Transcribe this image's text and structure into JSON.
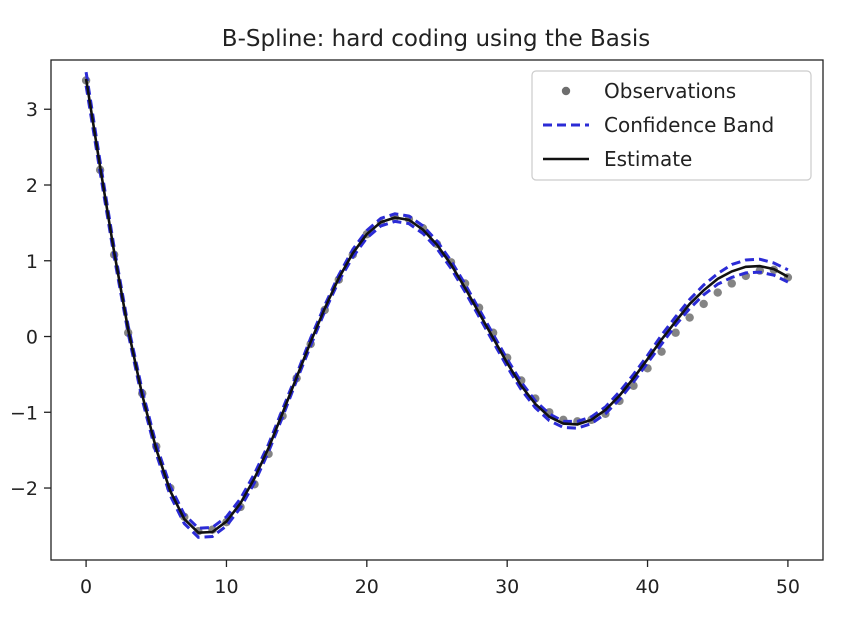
{
  "chart_data": {
    "type": "line",
    "title": "B-Spline: hard coding using the Basis",
    "xlabel": "",
    "ylabel": "",
    "xlim": [
      -2.5,
      52.5
    ],
    "ylim": [
      -2.95,
      3.65
    ],
    "xticks": [
      0,
      10,
      20,
      30,
      40,
      50
    ],
    "xtick_labels": [
      "0",
      "10",
      "20",
      "30",
      "40",
      "50"
    ],
    "yticks": [
      3,
      2,
      1,
      0,
      -1,
      -2
    ],
    "ytick_labels": [
      "3",
      "2",
      "1",
      "0",
      "−1",
      "−2"
    ],
    "grid": false,
    "legend_position": "top-right",
    "legend": [
      {
        "label": "Observations",
        "kind": "marker",
        "color": "#6e6e6e"
      },
      {
        "label": "Confidence Band",
        "kind": "dashed",
        "color": "#2b2bd6"
      },
      {
        "label": "Estimate",
        "kind": "solid",
        "color": "#111111"
      }
    ],
    "series": [
      {
        "name": "Observations",
        "kind": "scatter",
        "color": "#6e6e6e",
        "x": [
          0,
          1,
          2,
          3,
          4,
          5,
          6,
          7,
          8,
          9,
          10,
          11,
          12,
          13,
          14,
          15,
          16,
          17,
          18,
          19,
          20,
          21,
          22,
          23,
          24,
          25,
          26,
          27,
          28,
          29,
          30,
          31,
          32,
          33,
          34,
          35,
          36,
          37,
          38,
          39,
          40,
          41,
          42,
          43,
          44,
          45,
          46,
          47,
          48,
          49,
          50
        ],
        "y": [
          3.38,
          2.2,
          1.08,
          0.05,
          -0.75,
          -1.45,
          -2.0,
          -2.38,
          -2.57,
          -2.55,
          -2.45,
          -2.25,
          -1.95,
          -1.55,
          -1.05,
          -0.55,
          -0.1,
          0.35,
          0.75,
          1.08,
          1.35,
          1.5,
          1.57,
          1.55,
          1.43,
          1.22,
          0.98,
          0.7,
          0.38,
          0.05,
          -0.28,
          -0.58,
          -0.82,
          -1.0,
          -1.1,
          -1.12,
          -1.1,
          -1.02,
          -0.85,
          -0.65,
          -0.42,
          -0.2,
          0.05,
          0.25,
          0.43,
          0.58,
          0.7,
          0.8,
          0.87,
          0.88,
          0.78
        ]
      },
      {
        "name": "Confidence Band",
        "kind": "band-upper",
        "color": "#2b2bd6",
        "x": [
          0,
          1,
          2,
          3,
          4,
          5,
          6,
          7,
          8,
          9,
          10,
          11,
          12,
          13,
          14,
          15,
          16,
          17,
          18,
          19,
          20,
          21,
          22,
          23,
          24,
          25,
          26,
          27,
          28,
          29,
          30,
          31,
          32,
          33,
          34,
          35,
          36,
          37,
          38,
          39,
          40,
          41,
          42,
          43,
          44,
          45,
          46,
          47,
          48,
          49,
          50
        ],
        "y": [
          3.49,
          2.31,
          1.17,
          0.14,
          -0.71,
          -1.43,
          -1.98,
          -2.35,
          -2.53,
          -2.52,
          -2.38,
          -2.14,
          -1.81,
          -1.42,
          -0.96,
          -0.5,
          -0.02,
          0.41,
          0.81,
          1.15,
          1.4,
          1.56,
          1.62,
          1.59,
          1.46,
          1.26,
          1.0,
          0.69,
          0.36,
          0.03,
          -0.3,
          -0.6,
          -0.85,
          -1.02,
          -1.12,
          -1.12,
          -1.06,
          -0.93,
          -0.73,
          -0.5,
          -0.25,
          0.02,
          0.26,
          0.49,
          0.68,
          0.83,
          0.95,
          1.01,
          1.02,
          0.97,
          0.88
        ]
      },
      {
        "name": "Estimate",
        "kind": "line",
        "color": "#111111",
        "x": [
          0,
          1,
          2,
          3,
          4,
          5,
          6,
          7,
          8,
          9,
          10,
          11,
          12,
          13,
          14,
          15,
          16,
          17,
          18,
          19,
          20,
          21,
          22,
          23,
          24,
          25,
          26,
          27,
          28,
          29,
          30,
          31,
          32,
          33,
          34,
          35,
          36,
          37,
          38,
          39,
          40,
          41,
          42,
          43,
          44,
          45,
          46,
          47,
          48,
          49,
          50
        ],
        "y": [
          3.4,
          2.24,
          1.11,
          0.09,
          -0.77,
          -1.49,
          -2.04,
          -2.41,
          -2.59,
          -2.58,
          -2.44,
          -2.2,
          -1.87,
          -1.47,
          -1.01,
          -0.54,
          -0.07,
          0.37,
          0.77,
          1.1,
          1.35,
          1.51,
          1.57,
          1.54,
          1.41,
          1.21,
          0.95,
          0.64,
          0.31,
          -0.02,
          -0.35,
          -0.65,
          -0.89,
          -1.06,
          -1.15,
          -1.16,
          -1.1,
          -0.97,
          -0.78,
          -0.55,
          -0.3,
          -0.04,
          0.2,
          0.43,
          0.61,
          0.76,
          0.86,
          0.92,
          0.93,
          0.89,
          0.79
        ]
      },
      {
        "name": "Confidence Band",
        "kind": "band-lower",
        "color": "#2b2bd6",
        "x": [
          0,
          1,
          2,
          3,
          4,
          5,
          6,
          7,
          8,
          9,
          10,
          11,
          12,
          13,
          14,
          15,
          16,
          17,
          18,
          19,
          20,
          21,
          22,
          23,
          24,
          25,
          26,
          27,
          28,
          29,
          30,
          31,
          32,
          33,
          34,
          35,
          36,
          37,
          38,
          39,
          40,
          41,
          42,
          43,
          44,
          45,
          46,
          47,
          48,
          49,
          50
        ],
        "y": [
          3.31,
          2.17,
          1.05,
          0.04,
          -0.83,
          -1.55,
          -2.1,
          -2.47,
          -2.65,
          -2.64,
          -2.5,
          -2.26,
          -1.93,
          -1.52,
          -1.06,
          -0.58,
          -0.12,
          0.33,
          0.73,
          1.05,
          1.3,
          1.46,
          1.52,
          1.49,
          1.36,
          1.16,
          0.9,
          0.59,
          0.26,
          -0.07,
          -0.4,
          -0.7,
          -0.94,
          -1.11,
          -1.2,
          -1.21,
          -1.15,
          -1.02,
          -0.83,
          -0.6,
          -0.35,
          -0.1,
          0.15,
          0.37,
          0.55,
          0.69,
          0.78,
          0.84,
          0.85,
          0.81,
          0.72
        ]
      }
    ]
  }
}
